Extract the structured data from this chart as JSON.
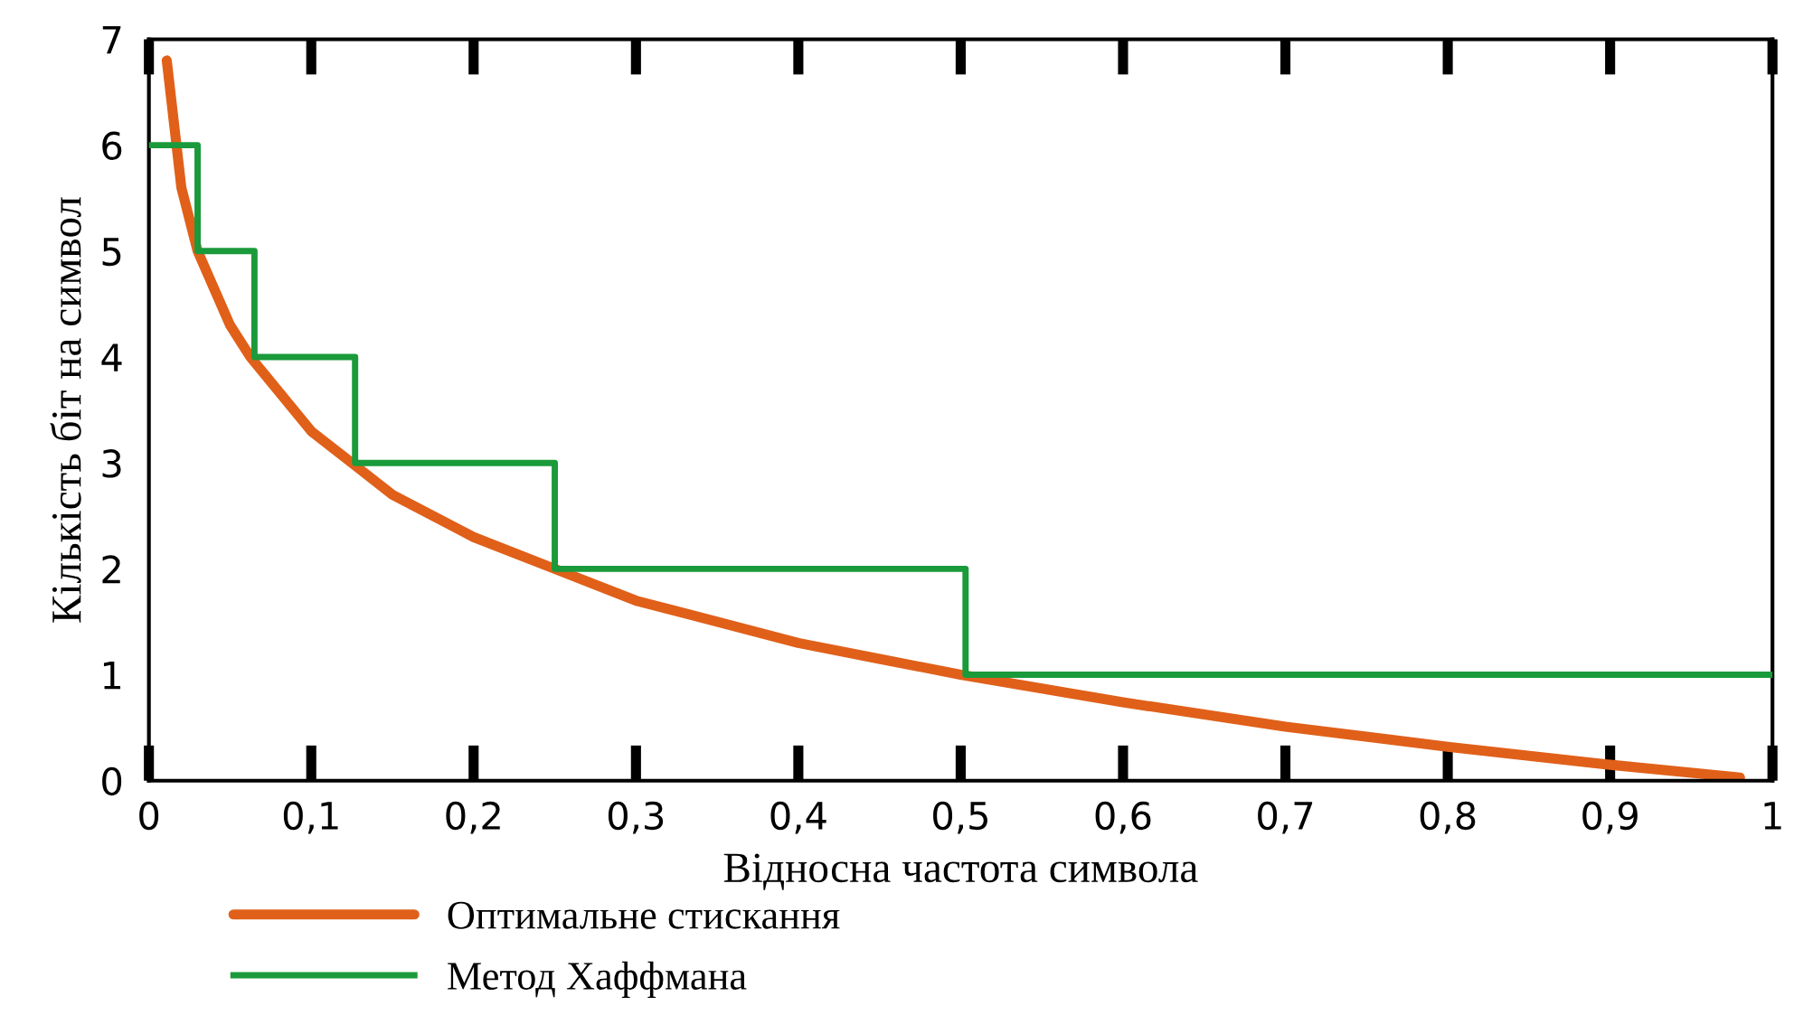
{
  "chart_data": {
    "type": "line",
    "xlabel": "Відносна частота символа",
    "ylabel": "Кількість біт на символ",
    "xlim": [
      0,
      1
    ],
    "ylim": [
      0,
      7
    ],
    "xticks": [
      0,
      {
        "value": 0.1,
        "label": "0,1"
      },
      {
        "value": 0.2,
        "label": "0,2"
      },
      {
        "value": 0.3,
        "label": "0,3"
      },
      {
        "value": 0.4,
        "label": "0,4"
      },
      {
        "value": 0.5,
        "label": "0,5"
      },
      {
        "value": 0.6,
        "label": "0,6"
      },
      {
        "value": 0.7,
        "label": "0,7"
      },
      {
        "value": 0.8,
        "label": "0,8"
      },
      {
        "value": 0.9,
        "label": "0,9"
      },
      1
    ],
    "yticks": [
      0,
      1,
      2,
      3,
      4,
      5,
      6,
      7
    ],
    "grid": false,
    "legend": "bottom",
    "line_style": "solid",
    "series": [
      {
        "name": "Оптимальне стискання",
        "color": "#e0601a",
        "x": [
          0.011,
          0.02,
          0.03,
          0.05,
          0.0625,
          0.1,
          0.125,
          0.15,
          0.2,
          0.25,
          0.3,
          0.35,
          0.4,
          0.45,
          0.5,
          0.6,
          0.7,
          0.8,
          0.9,
          0.98
        ],
        "values": [
          6.8,
          5.6,
          5.0,
          4.3,
          4.0,
          3.3,
          3.0,
          2.7,
          2.3,
          2.0,
          1.7,
          1.5,
          1.3,
          1.15,
          1.0,
          0.74,
          0.51,
          0.32,
          0.15,
          0.03
        ]
      },
      {
        "name": "Метод Хаффмана",
        "color": "#1a9a3a",
        "type": "step",
        "x": [
          0,
          0.03,
          0.065,
          0.127,
          0.25,
          0.503,
          1
        ],
        "values": [
          6,
          5,
          4,
          3,
          2,
          1,
          1
        ]
      }
    ]
  }
}
